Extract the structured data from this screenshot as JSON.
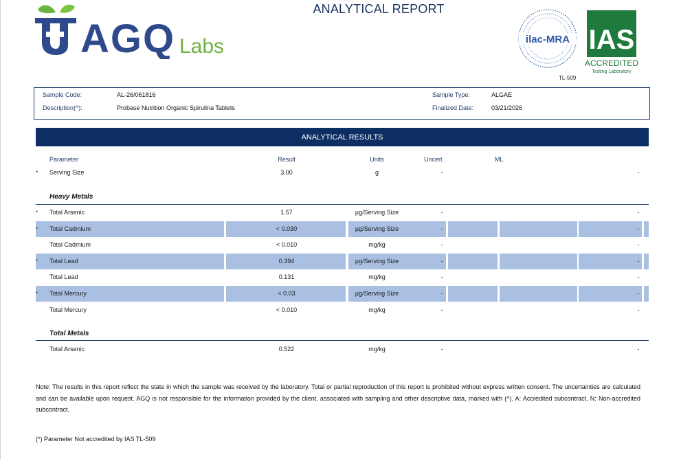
{
  "header": {
    "brand_main": "AGQ",
    "brand_sub": "Labs",
    "title": "ANALYTICAL REPORT",
    "ilac_text": "ilac-MRA",
    "ilac_code": "TL-509",
    "ias_text": "IAS",
    "ias_accredited": "ACCREDITED",
    "ias_sub": "Testing Laboratory"
  },
  "sample": {
    "code_label": "Sample Code:",
    "code_value": "AL-26/061816",
    "desc_label": "Description(^):",
    "desc_value": "Probase Nutrition Organic Spirulina Tablets",
    "type_label": "Sample Type:",
    "type_value": "ALGAE",
    "date_label": "Finalized Date:",
    "date_value": "03/21/2026"
  },
  "results": {
    "band_title": "ANALYTICAL RESULTS",
    "columns": {
      "parameter": "Parameter",
      "result": "Result",
      "units": "Units",
      "uncert": "Uncert",
      "ml": "ML"
    },
    "serving": {
      "star": "*",
      "param": "Serving Size",
      "result": "3.00",
      "units": "g",
      "uncert": "-",
      "ml": "-"
    },
    "heavy_metals_title": "Heavy Metals",
    "heavy_metals": [
      {
        "star": "*",
        "param": "Total Arsenic",
        "result": "1.57",
        "units": "µg/Serving Size",
        "uncert": "-",
        "ml": "-",
        "shaded": false
      },
      {
        "star": "*",
        "param": "Total Cadmium",
        "result": "< 0.030",
        "units": "µg/Serving Size",
        "uncert": "-",
        "ml": "-",
        "shaded": true
      },
      {
        "star": "",
        "param": "Total Cadmium",
        "result": "< 0.010",
        "units": "mg/kg",
        "uncert": "-",
        "ml": "-",
        "shaded": false
      },
      {
        "star": "*",
        "param": "Total Lead",
        "result": "0.394",
        "units": "µg/Serving Size",
        "uncert": "-",
        "ml": "-",
        "shaded": true
      },
      {
        "star": "",
        "param": "Total Lead",
        "result": "0.131",
        "units": "mg/kg",
        "uncert": "-",
        "ml": "-",
        "shaded": false
      },
      {
        "star": "*",
        "param": "Total Mercury",
        "result": "< 0.03",
        "units": "µg/Serving Size",
        "uncert": "-",
        "ml": "-",
        "shaded": true
      },
      {
        "star": "",
        "param": "Total Mercury",
        "result": "< 0.010",
        "units": "mg/kg",
        "uncert": "-",
        "ml": "-",
        "shaded": false
      }
    ],
    "total_metals_title": "Total Metals",
    "total_metals": [
      {
        "star": "",
        "param": "Total Arsenic",
        "result": "0.522",
        "units": "mg/kg",
        "uncert": "-",
        "ml": "-",
        "shaded": false
      }
    ]
  },
  "notes": {
    "note": "Note: The results in this report reflect the state in which the sample was received by the laboratory. Total or partial reproduction of this report is prohibited without express written consent. The uncertainties are calculated and can be available upon request. AGQ is not responsible for the information provided by the client, associated with sampling and other descriptive data, marked with (^). A: Accredited subcontract, N: Non-accredited subcontract.",
    "footnote": "(*) Parameter Not accredited by IAS TL-509"
  },
  "colors": {
    "navy": "#0d2e63",
    "shade": "#a9c0e2",
    "logo_blue": "#2f4a8c",
    "logo_green": "#6db33f",
    "ias_green": "#1f7a3e"
  }
}
